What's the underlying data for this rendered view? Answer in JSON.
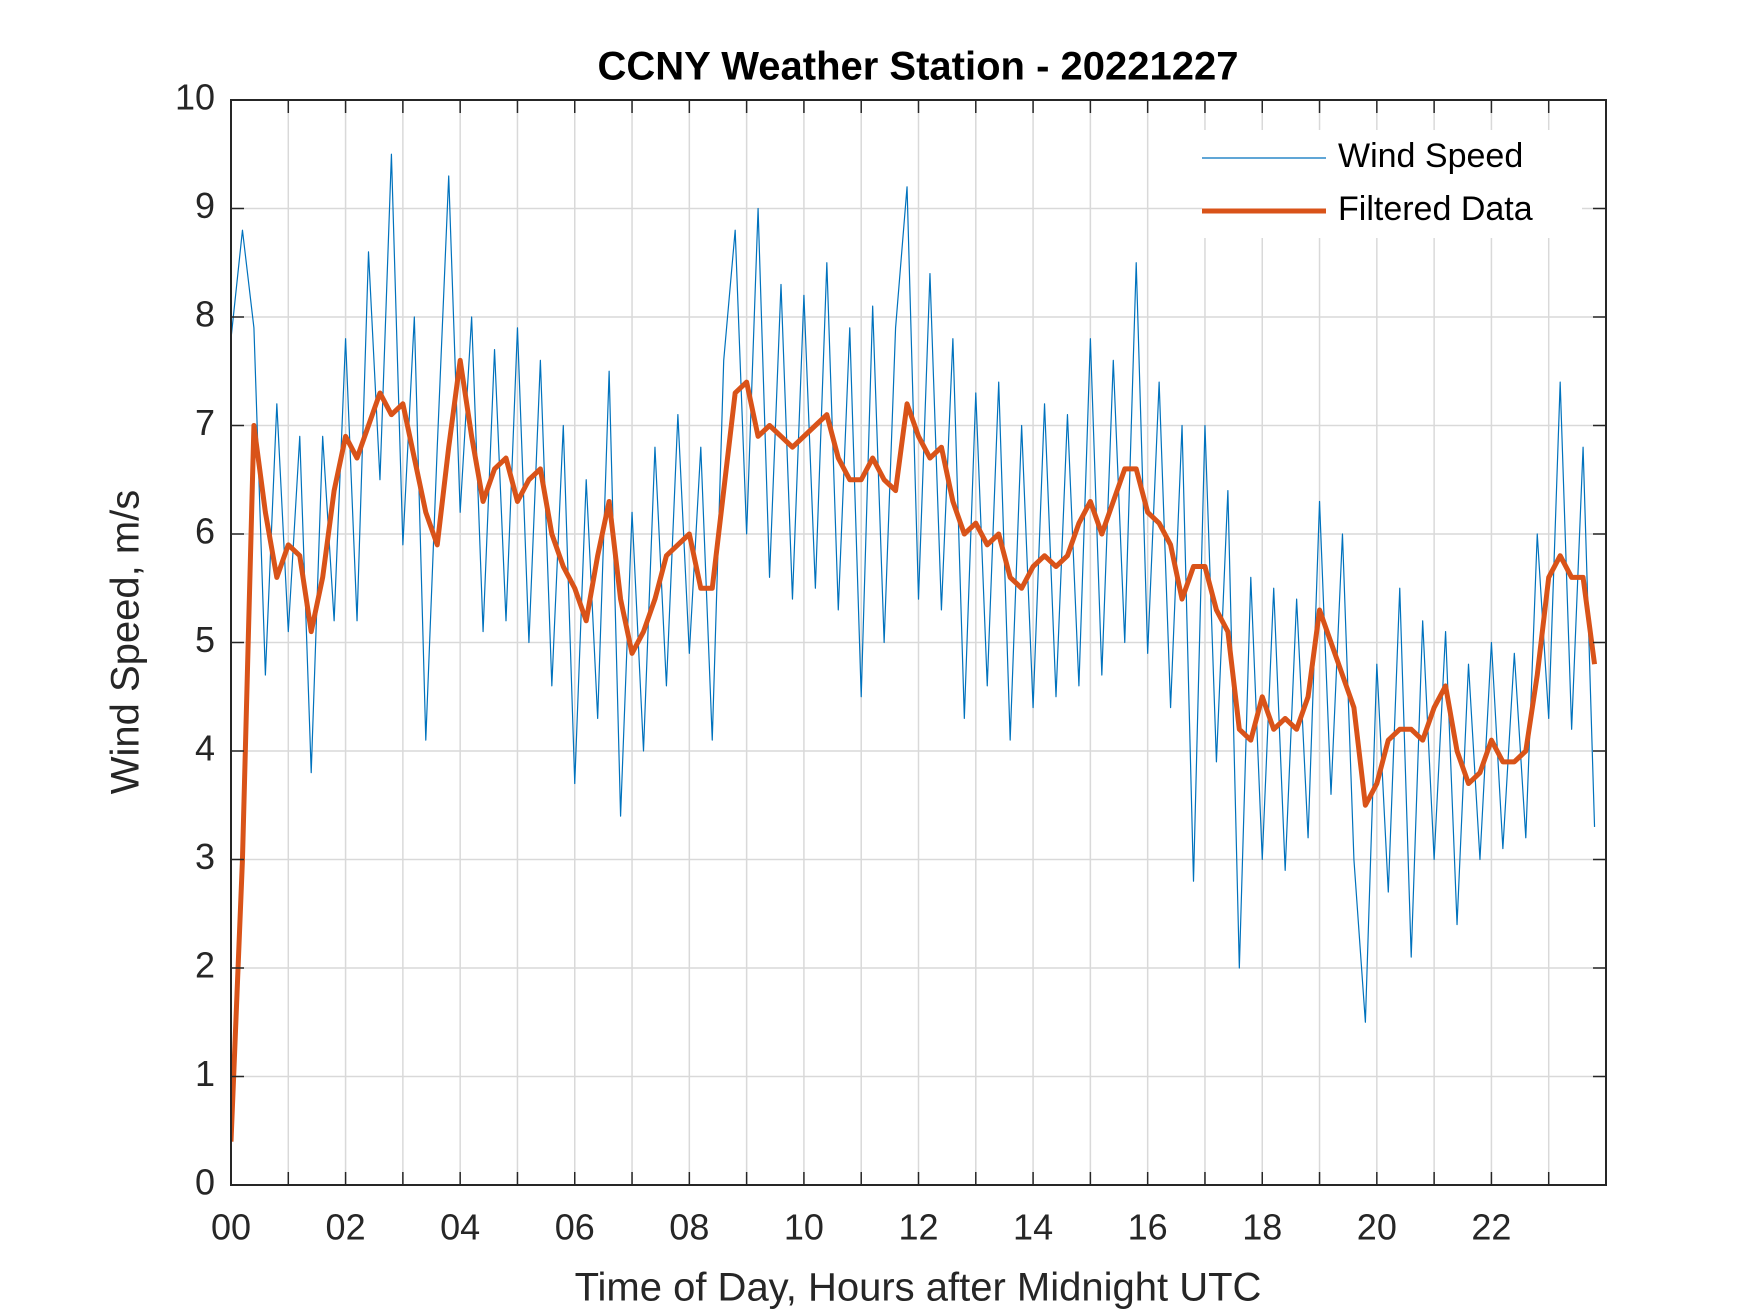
{
  "chart_data": {
    "type": "line",
    "title": "CCNY Weather Station - 20221227",
    "x_label": "Time of Day, Hours after Midnight UTC",
    "y_label": "Wind Speed, m/s",
    "x": [
      0,
      0.2,
      0.4,
      0.6,
      0.8,
      1,
      1.2,
      1.4,
      1.6,
      1.8,
      2,
      2.2,
      2.4,
      2.6,
      2.8,
      3,
      3.2,
      3.4,
      3.6,
      3.8,
      4,
      4.2,
      4.4,
      4.6,
      4.8,
      5,
      5.2,
      5.4,
      5.6,
      5.8,
      6,
      6.2,
      6.4,
      6.6,
      6.8,
      7,
      7.2,
      7.4,
      7.6,
      7.8,
      8,
      8.2,
      8.4,
      8.6,
      8.8,
      9,
      9.2,
      9.4,
      9.6,
      9.8,
      10,
      10.2,
      10.4,
      10.6,
      10.8,
      11,
      11.2,
      11.4,
      11.6,
      11.8,
      12,
      12.2,
      12.4,
      12.6,
      12.8,
      13,
      13.2,
      13.4,
      13.6,
      13.8,
      14,
      14.2,
      14.4,
      14.6,
      14.8,
      15,
      15.2,
      15.4,
      15.6,
      15.8,
      16,
      16.2,
      16.4,
      16.6,
      16.8,
      17,
      17.2,
      17.4,
      17.6,
      17.8,
      18,
      18.2,
      18.4,
      18.6,
      18.8,
      19,
      19.2,
      19.4,
      19.6,
      19.8,
      20,
      20.2,
      20.4,
      20.6,
      20.8,
      21,
      21.2,
      21.4,
      21.6,
      21.8,
      22,
      22.2,
      22.4,
      22.6,
      22.8,
      23,
      23.2,
      23.4,
      23.6,
      23.8
    ],
    "series": [
      {
        "name": "Wind Speed",
        "color": "#0072bd",
        "width": 1.2,
        "values": [
          7.8,
          8.8,
          7.9,
          4.7,
          7.2,
          5.1,
          6.9,
          3.8,
          6.9,
          5.2,
          7.8,
          5.2,
          8.6,
          6.5,
          9.5,
          5.9,
          8.0,
          4.1,
          6.8,
          9.3,
          6.2,
          8.0,
          5.1,
          7.7,
          5.2,
          7.9,
          5.0,
          7.6,
          4.6,
          7.0,
          3.7,
          6.5,
          4.3,
          7.5,
          3.4,
          6.2,
          4.0,
          6.8,
          4.6,
          7.1,
          4.9,
          6.8,
          4.1,
          7.6,
          8.8,
          6.0,
          9.0,
          5.6,
          8.3,
          5.4,
          8.2,
          5.5,
          8.5,
          5.3,
          7.9,
          4.5,
          8.1,
          5.0,
          7.9,
          9.2,
          5.4,
          8.4,
          5.3,
          7.8,
          4.3,
          7.3,
          4.6,
          7.4,
          4.1,
          7.0,
          4.4,
          7.2,
          4.5,
          7.1,
          4.6,
          7.8,
          4.7,
          7.6,
          5.0,
          8.5,
          4.9,
          7.4,
          4.4,
          7.0,
          2.8,
          7.0,
          3.9,
          6.4,
          2.0,
          5.6,
          3.0,
          5.5,
          2.9,
          5.4,
          3.2,
          6.3,
          3.6,
          6.0,
          3.0,
          1.5,
          4.8,
          2.7,
          5.5,
          2.1,
          5.2,
          3.0,
          5.1,
          2.4,
          4.8,
          3.0,
          5.0,
          3.1,
          4.9,
          3.2,
          6.0,
          4.3,
          7.4,
          4.2,
          6.8,
          3.3
        ]
      },
      {
        "name": "Filtered Data",
        "color": "#d95319",
        "width": 5,
        "values": [
          0.4,
          3.0,
          7.0,
          6.2,
          5.6,
          5.9,
          5.8,
          5.1,
          5.6,
          6.4,
          6.9,
          6.7,
          7.0,
          7.3,
          7.1,
          7.2,
          6.7,
          6.2,
          5.9,
          6.8,
          7.6,
          6.9,
          6.3,
          6.6,
          6.7,
          6.3,
          6.5,
          6.6,
          6.0,
          5.7,
          5.5,
          5.2,
          5.8,
          6.3,
          5.4,
          4.9,
          5.1,
          5.4,
          5.8,
          5.9,
          6.0,
          5.5,
          5.5,
          6.4,
          7.3,
          7.4,
          6.9,
          7.0,
          6.9,
          6.8,
          6.9,
          7.0,
          7.1,
          6.7,
          6.5,
          6.5,
          6.7,
          6.5,
          6.4,
          7.2,
          6.9,
          6.7,
          6.8,
          6.3,
          6.0,
          6.1,
          5.9,
          6.0,
          5.6,
          5.5,
          5.7,
          5.8,
          5.7,
          5.8,
          6.1,
          6.3,
          6.0,
          6.3,
          6.6,
          6.6,
          6.2,
          6.1,
          5.9,
          5.4,
          5.7,
          5.7,
          5.3,
          5.1,
          4.2,
          4.1,
          4.5,
          4.2,
          4.3,
          4.2,
          4.5,
          5.3,
          5.0,
          4.7,
          4.4,
          3.5,
          3.7,
          4.1,
          4.2,
          4.2,
          4.1,
          4.4,
          4.6,
          4.0,
          3.7,
          3.8,
          4.1,
          3.9,
          3.9,
          4.0,
          4.7,
          5.6,
          5.8,
          5.6,
          5.6,
          4.8
        ]
      }
    ],
    "xlim": [
      0,
      24
    ],
    "ylim": [
      0,
      10
    ],
    "xticks": [
      {
        "value": 0,
        "label": "00"
      },
      {
        "value": 2,
        "label": "02"
      },
      {
        "value": 4,
        "label": "04"
      },
      {
        "value": 6,
        "label": "06"
      },
      {
        "value": 8,
        "label": "08"
      },
      {
        "value": 10,
        "label": "10"
      },
      {
        "value": 12,
        "label": "12"
      },
      {
        "value": 14,
        "label": "14"
      },
      {
        "value": 16,
        "label": "16"
      },
      {
        "value": 18,
        "label": "18"
      },
      {
        "value": 20,
        "label": "20"
      },
      {
        "value": 22,
        "label": "22"
      }
    ],
    "xminorticks": [
      1,
      3,
      5,
      7,
      9,
      11,
      13,
      15,
      17,
      19,
      21,
      23
    ],
    "yticks": [
      0,
      1,
      2,
      3,
      4,
      5,
      6,
      7,
      8,
      9,
      10
    ],
    "grid": true,
    "legend": "top-right"
  }
}
